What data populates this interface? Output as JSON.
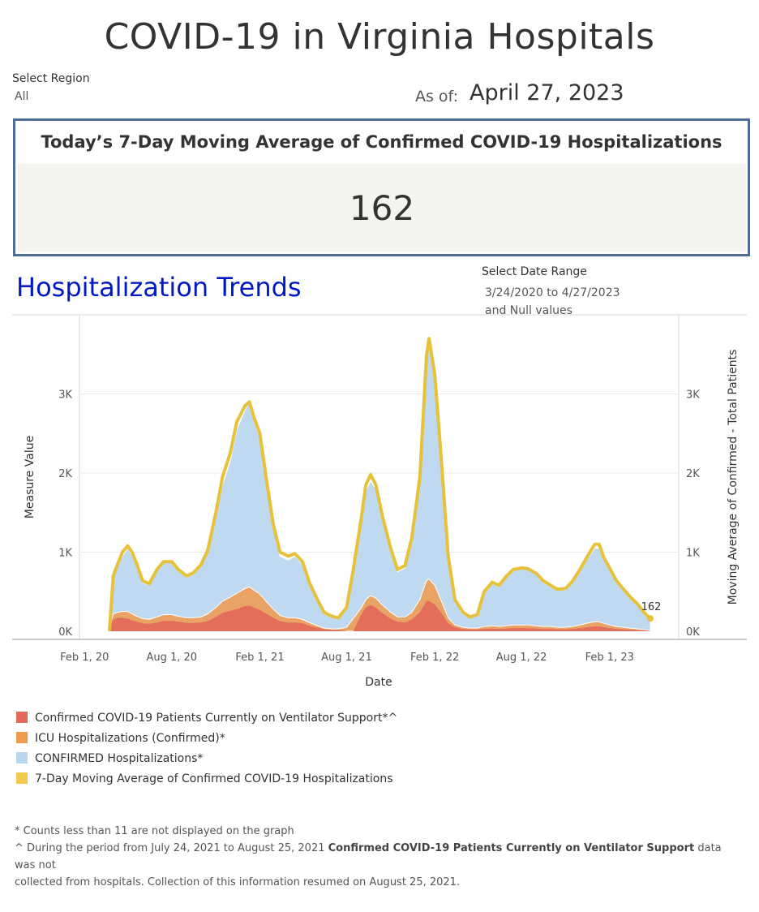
{
  "title": "COVID-19 in Virginia Hospitals",
  "filters": {
    "region_label": "Select Region",
    "region_value": "All",
    "asof_label": "As of:",
    "asof_date": "April 27, 2023",
    "date_range_label": "Select Date Range",
    "date_range_value": "3/24/2020 to 4/27/2023",
    "date_range_null": "and Null values"
  },
  "kpi": {
    "title": "Today’s 7-Day Moving Average of Confirmed COVID-19 Hospitalizations",
    "value": "162"
  },
  "trends_title": "Hospitalization Trends",
  "legend": [
    {
      "label": "Confirmed COVID-19 Patients Currently on Ventilator Support*^",
      "color": "#e2685a"
    },
    {
      "label": "ICU Hospitalizations (Confirmed)*",
      "color": "#f09a4c"
    },
    {
      "label": "CONFIRMED Hospitalizations*",
      "color": "#b8d6ee"
    },
    {
      "label": "7-Day Moving Average of Confirmed COVID-19 Hospitalizations",
      "color": "#f0cb4e"
    }
  ],
  "footnotes": {
    "line1": "* Counts less than 11 are  not displayed on the graph",
    "line2_pre": "^ During the period from July 24, 2021 to August 25, 2021 ",
    "line2_bold": "Confirmed COVID-19 Patients Currently on Ventilator Support",
    "line2_post": " data was not",
    "line3": "collected from hospitals. Collection of this information resumed on August 25, 2021."
  },
  "chart_data": {
    "type": "area",
    "xlabel": "Date",
    "ylabel": "Measure Value",
    "ylabel_right": "Moving Average of Confirmed - Total Patients",
    "ylim": [
      0,
      4000
    ],
    "y_ticks": [
      "0K",
      "1K",
      "2K",
      "3K"
    ],
    "y_tick_values": [
      0,
      1000,
      2000,
      3000
    ],
    "x_domain": [
      "2020-03-24",
      "2023-04-27"
    ],
    "x_ticks": [
      {
        "label": "Feb 1, 20",
        "date": "2020-02-01"
      },
      {
        "label": "Aug 1, 20",
        "date": "2020-08-01"
      },
      {
        "label": "Feb 1, 21",
        "date": "2021-02-01"
      },
      {
        "label": "Aug 1, 21",
        "date": "2021-08-01"
      },
      {
        "label": "Feb 1, 22",
        "date": "2022-02-01"
      },
      {
        "label": "Aug 1, 22",
        "date": "2022-08-01"
      },
      {
        "label": "Feb 1, 23",
        "date": "2023-02-01"
      }
    ],
    "end_label": "162",
    "dates": [
      "2020-03-24",
      "2020-04-01",
      "2020-04-10",
      "2020-04-20",
      "2020-05-01",
      "2020-05-10",
      "2020-05-20",
      "2020-06-01",
      "2020-06-15",
      "2020-07-01",
      "2020-07-15",
      "2020-08-01",
      "2020-08-15",
      "2020-09-01",
      "2020-09-15",
      "2020-10-01",
      "2020-10-15",
      "2020-11-01",
      "2020-11-15",
      "2020-12-01",
      "2020-12-15",
      "2021-01-01",
      "2021-01-10",
      "2021-01-20",
      "2021-02-01",
      "2021-02-15",
      "2021-03-01",
      "2021-03-15",
      "2021-04-01",
      "2021-04-15",
      "2021-05-01",
      "2021-05-15",
      "2021-06-01",
      "2021-06-15",
      "2021-07-01",
      "2021-07-15",
      "2021-08-01",
      "2021-08-15",
      "2021-09-01",
      "2021-09-10",
      "2021-09-20",
      "2021-10-01",
      "2021-10-15",
      "2021-11-01",
      "2021-11-15",
      "2021-12-01",
      "2021-12-15",
      "2022-01-01",
      "2022-01-10",
      "2022-01-15",
      "2022-01-20",
      "2022-02-01",
      "2022-02-15",
      "2022-03-01",
      "2022-03-15",
      "2022-04-01",
      "2022-04-15",
      "2022-05-01",
      "2022-05-15",
      "2022-06-01",
      "2022-06-15",
      "2022-07-01",
      "2022-07-15",
      "2022-08-01",
      "2022-08-15",
      "2022-09-01",
      "2022-09-15",
      "2022-10-01",
      "2022-10-15",
      "2022-11-01",
      "2022-11-15",
      "2022-12-01",
      "2022-12-15",
      "2023-01-01",
      "2023-01-10",
      "2023-01-20",
      "2023-02-01",
      "2023-02-15",
      "2023-03-01",
      "2023-03-15",
      "2023-04-01",
      "2023-04-15",
      "2023-04-27"
    ],
    "series": [
      {
        "name": "CONFIRMED Hospitalizations*",
        "values": [
          150,
          700,
          850,
          950,
          1050,
          960,
          820,
          620,
          580,
          760,
          880,
          880,
          760,
          680,
          720,
          820,
          1000,
          1450,
          1850,
          2150,
          2550,
          2800,
          2900,
          2650,
          2450,
          1850,
          1300,
          950,
          900,
          950,
          850,
          600,
          380,
          220,
          180,
          160,
          280,
          750,
          1400,
          1780,
          1900,
          1800,
          1400,
          1000,
          750,
          800,
          1150,
          1900,
          2900,
          3450,
          3700,
          3200,
          2100,
          900,
          380,
          220,
          170,
          200,
          480,
          600,
          560,
          680,
          760,
          800,
          780,
          720,
          620,
          560,
          520,
          520,
          620,
          750,
          900,
          1050,
          1050,
          900,
          780,
          620,
          520,
          420,
          320,
          220,
          150
        ]
      },
      {
        "name": "ICU Hospitalizations (Confirmed)*",
        "values": [
          60,
          220,
          240,
          250,
          250,
          220,
          190,
          160,
          150,
          180,
          210,
          210,
          190,
          170,
          170,
          180,
          220,
          300,
          380,
          430,
          480,
          540,
          560,
          520,
          470,
          370,
          280,
          200,
          170,
          170,
          150,
          110,
          70,
          40,
          30,
          30,
          50,
          160,
          300,
          400,
          450,
          420,
          330,
          240,
          180,
          180,
          240,
          400,
          560,
          640,
          660,
          580,
          380,
          170,
          80,
          50,
          40,
          40,
          60,
          70,
          60,
          70,
          80,
          80,
          80,
          70,
          60,
          60,
          50,
          50,
          60,
          80,
          100,
          120,
          120,
          100,
          80,
          60,
          50,
          40,
          30,
          20,
          15
        ]
      },
      {
        "name": "Confirmed COVID-19 Patients Currently on Ventilator Support*^",
        "values": [
          40,
          150,
          170,
          170,
          160,
          140,
          120,
          100,
          95,
          110,
          130,
          130,
          120,
          105,
          105,
          110,
          130,
          180,
          230,
          260,
          280,
          320,
          320,
          300,
          270,
          220,
          170,
          125,
          110,
          110,
          100,
          70,
          45,
          25,
          20,
          20,
          0,
          0,
          220,
          300,
          330,
          300,
          230,
          160,
          120,
          110,
          150,
          240,
          330,
          380,
          380,
          340,
          230,
          100,
          50,
          30,
          25,
          25,
          30,
          35,
          30,
          35,
          40,
          40,
          40,
          35,
          30,
          30,
          25,
          25,
          30,
          40,
          50,
          60,
          60,
          50,
          40,
          30,
          25,
          20,
          15,
          12,
          0
        ]
      },
      {
        "name": "7-Day Moving Average of Confirmed COVID-19 Hospitalizations",
        "values": [
          20,
          700,
          850,
          1000,
          1080,
          1000,
          850,
          640,
          600,
          780,
          880,
          880,
          780,
          700,
          740,
          840,
          1020,
          1500,
          1950,
          2250,
          2650,
          2850,
          2900,
          2700,
          2500,
          1900,
          1350,
          1000,
          950,
          980,
          880,
          620,
          400,
          240,
          190,
          170,
          300,
          780,
          1450,
          1850,
          1980,
          1850,
          1450,
          1050,
          780,
          830,
          1180,
          1950,
          2950,
          3500,
          3700,
          3250,
          2150,
          950,
          400,
          240,
          180,
          210,
          500,
          620,
          580,
          700,
          780,
          800,
          790,
          730,
          640,
          580,
          530,
          540,
          630,
          780,
          930,
          1100,
          1100,
          930,
          800,
          640,
          540,
          440,
          340,
          230,
          162
        ]
      }
    ]
  }
}
